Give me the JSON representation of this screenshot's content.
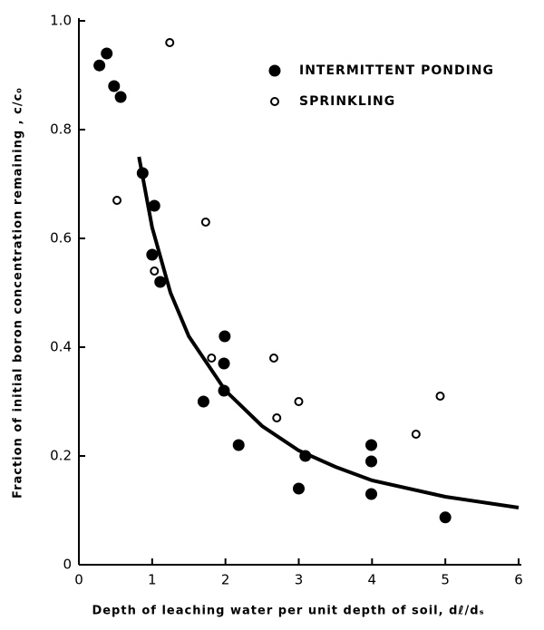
{
  "chart_data": {
    "type": "scatter",
    "xlabel": "Depth of leaching water per unit depth of soil, dℓ/dₛ",
    "ylabel": "Fraction of initial boron concentration remaining , c/c₀",
    "xlim": [
      0,
      6
    ],
    "ylim": [
      0,
      1
    ],
    "xticks": [
      0,
      1,
      2,
      3,
      4,
      5,
      6
    ],
    "yticks": [
      0,
      0.2,
      0.4,
      0.6,
      0.8,
      {
        "value": 1,
        "label": "1.0"
      }
    ],
    "legend": "top-right",
    "series": [
      {
        "name": "INTERMITTENT PONDING",
        "color": "#000000",
        "marker": "filled",
        "x": [
          0.28,
          0.38,
          0.48,
          0.57,
          0.87,
          1.03,
          1.0,
          1.11,
          1.7,
          1.99,
          1.98,
          1.98,
          2.18,
          3.0,
          3.09,
          3.99,
          3.99,
          3.99,
          5.0
        ],
        "values": [
          0.918,
          0.94,
          0.88,
          0.86,
          0.72,
          0.66,
          0.57,
          0.52,
          0.3,
          0.42,
          0.37,
          0.32,
          0.22,
          0.14,
          0.2,
          0.22,
          0.19,
          0.13,
          0.087
        ]
      },
      {
        "name": "SPRINKLING",
        "color": "#000000",
        "marker": "open",
        "x": [
          1.24,
          0.52,
          1.03,
          1.73,
          1.81,
          2.66,
          2.7,
          3.0,
          4.6,
          4.93
        ],
        "values": [
          0.96,
          0.67,
          0.54,
          0.63,
          0.38,
          0.38,
          0.27,
          0.3,
          0.24,
          0.31
        ]
      }
    ],
    "curve": {
      "color": "#000000",
      "x": [
        0.82,
        1,
        1.25,
        1.5,
        2,
        2.5,
        3,
        3.5,
        4,
        5,
        6
      ],
      "values": [
        0.75,
        0.62,
        0.5,
        0.42,
        0.32,
        0.255,
        0.21,
        0.18,
        0.155,
        0.125,
        0.105
      ]
    }
  }
}
